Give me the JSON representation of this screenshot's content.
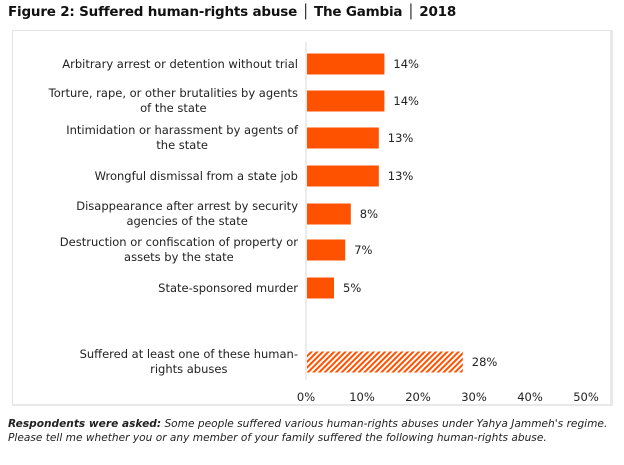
{
  "figure": {
    "title": "Figure 2: Suffered human-rights abuse │ The Gambia │ 2018",
    "note_label": "Respondents were asked:",
    "note_text": " Some people suffered various human-rights abuses under Yahya Jammeh's regime. Please tell me whether you or any member of your family suffered the following human-rights abuse."
  },
  "colors": {
    "bar": "#ff5200",
    "hatch": "#ff5200"
  },
  "chart_data": {
    "type": "bar",
    "orientation": "horizontal",
    "title": "Figure 2: Suffered human-rights abuse │ The Gambia │ 2018",
    "xlabel": "",
    "ylabel": "",
    "xlim": [
      0,
      50
    ],
    "xticks": [
      0,
      10,
      20,
      30,
      40,
      50
    ],
    "xtick_labels": [
      "0%",
      "10%",
      "20%",
      "30%",
      "40%",
      "50%"
    ],
    "grid": false,
    "categories": [
      [
        "Arbitrary arrest or detention without trial"
      ],
      [
        "Torture, rape, or other brutalities by agents",
        "of the state"
      ],
      [
        "Intimidation or harassment by agents of",
        "the state"
      ],
      [
        "Wrongful dismissal from a state job"
      ],
      [
        "Disappearance after arrest by security",
        "agencies of the state"
      ],
      [
        "Destruction or confiscation of property or",
        "assets by the state"
      ],
      [
        "State-sponsored murder"
      ],
      [
        "Suffered at least one of these human-",
        "rights abuses"
      ]
    ],
    "values": [
      14,
      14,
      13,
      13,
      8,
      7,
      5,
      28
    ],
    "value_labels": [
      "14%",
      "14%",
      "13%",
      "13%",
      "8%",
      "7%",
      "5%",
      "28%"
    ],
    "hatched": [
      false,
      false,
      false,
      false,
      false,
      false,
      false,
      true
    ]
  }
}
